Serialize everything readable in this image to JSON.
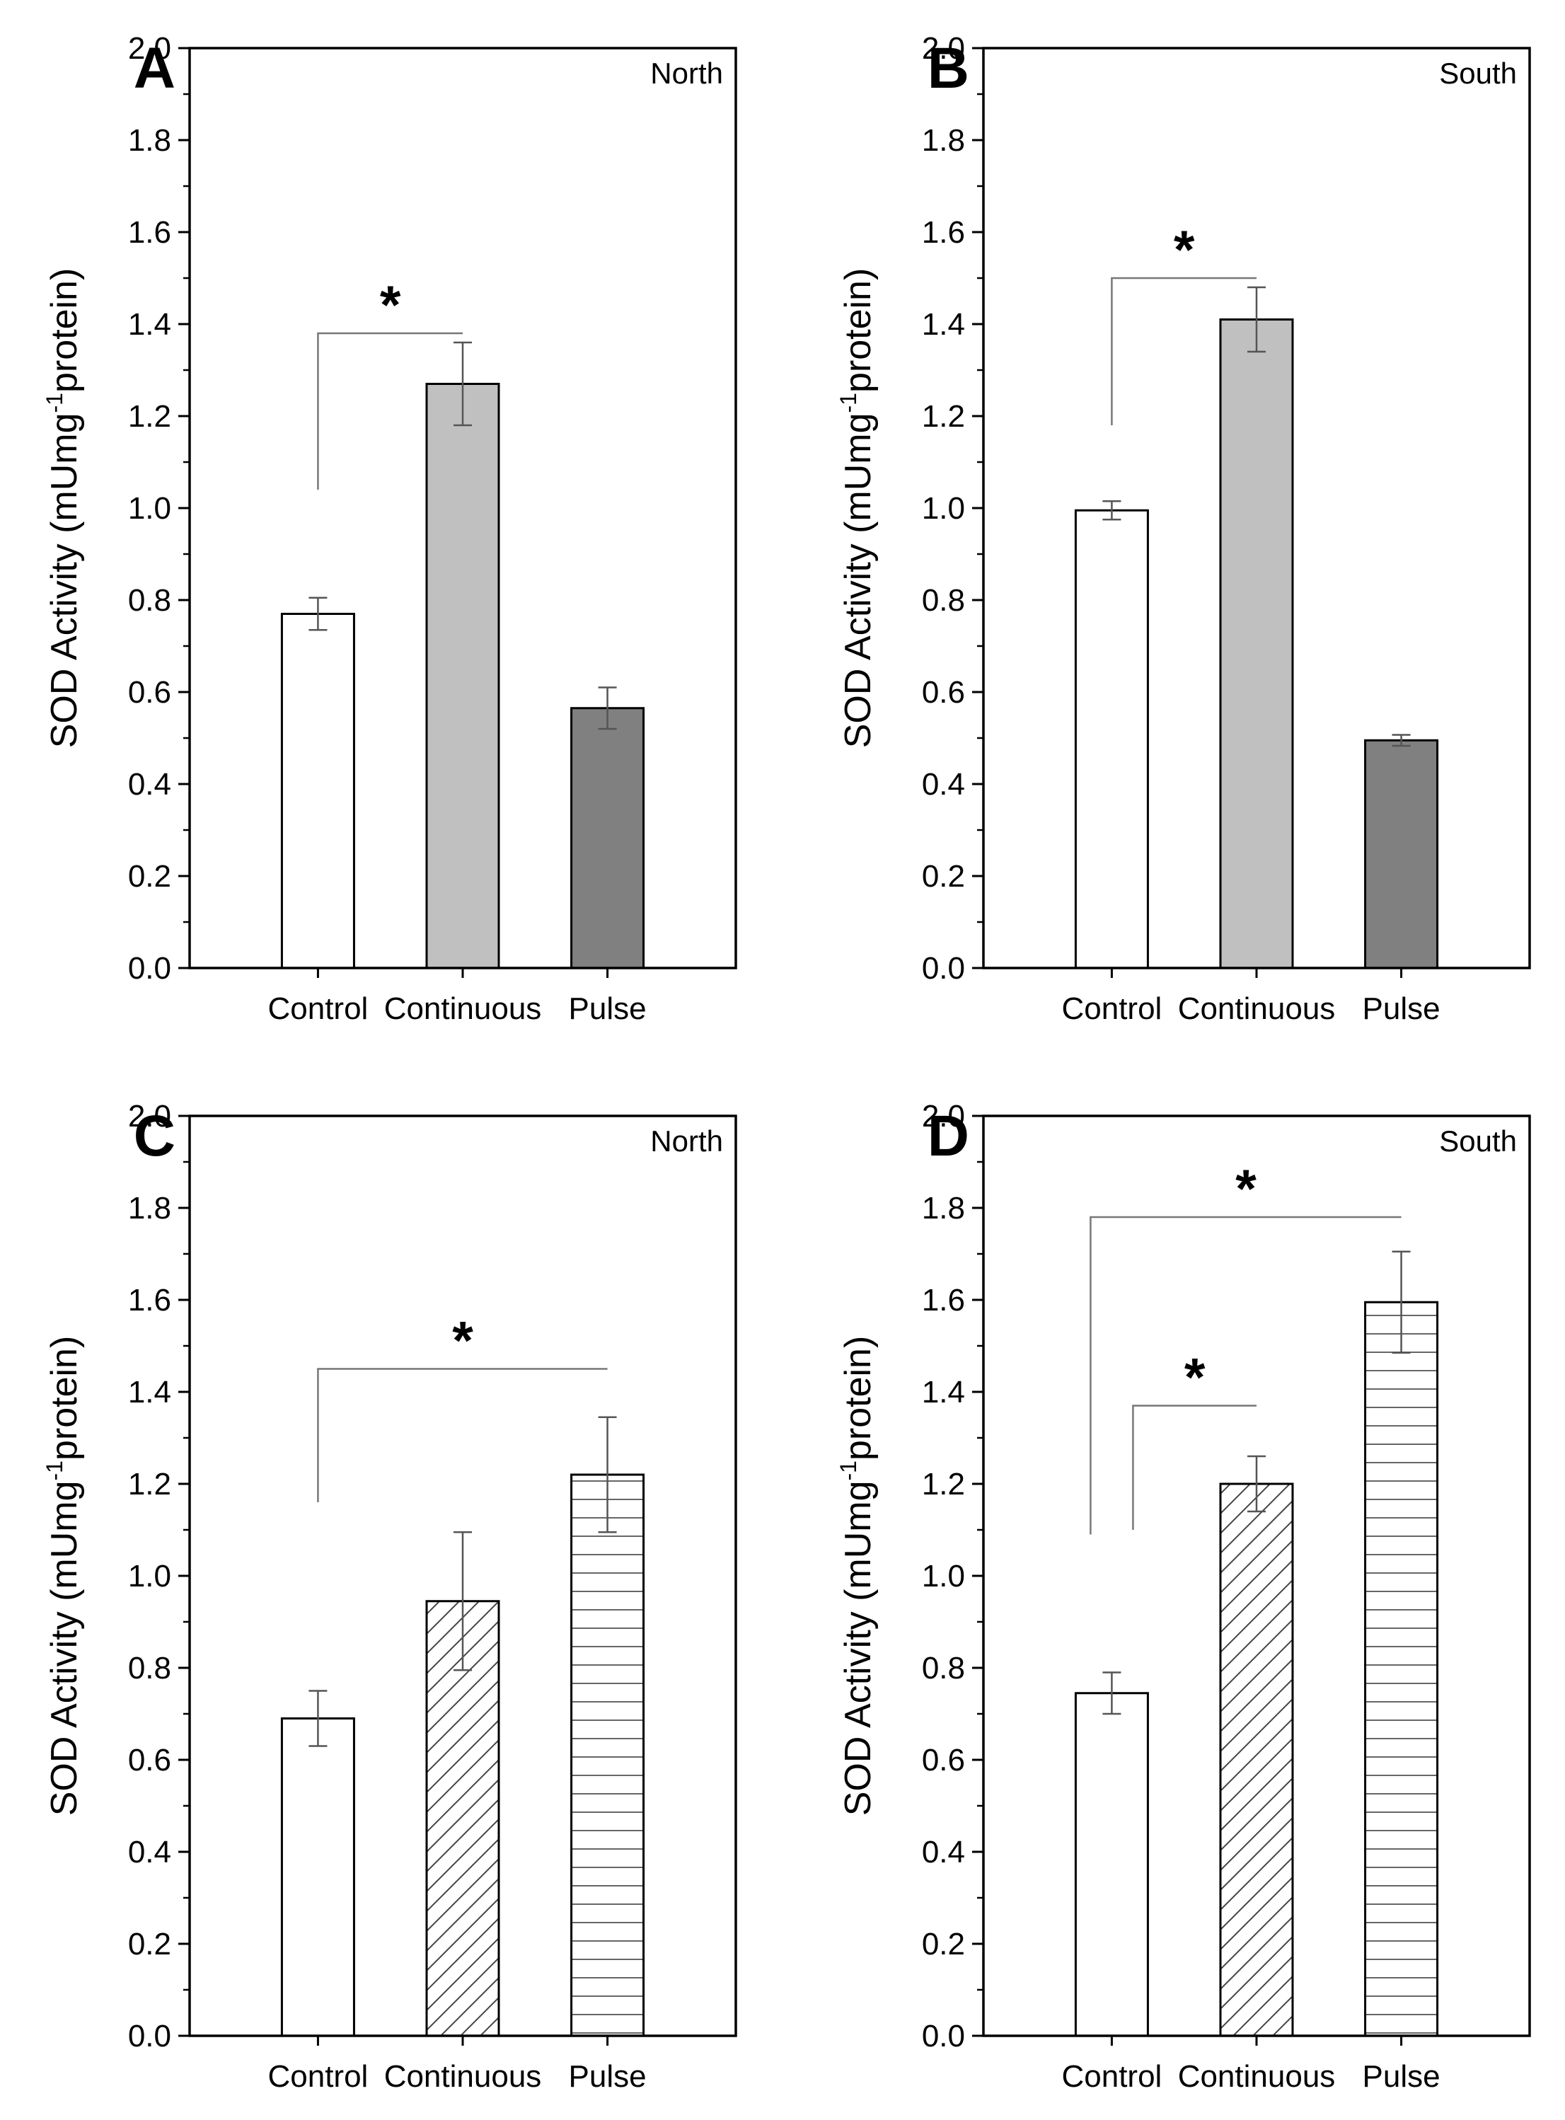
{
  "chart_data": [
    {
      "type": "bar",
      "panel": "A",
      "label": "North",
      "ylabel": {
        "main": "SOD Activity (mUmg",
        "sup": "-1",
        "end": "protein)"
      },
      "ylim": [
        0,
        2.0
      ],
      "yticks": [
        "0.0",
        "0.2",
        "0.4",
        "0.6",
        "0.8",
        "1.0",
        "1.2",
        "1.4",
        "1.6",
        "1.8",
        "2.0"
      ],
      "categories": [
        "Control",
        "Continuous",
        "Pulse"
      ],
      "values": [
        0.77,
        1.27,
        0.565
      ],
      "errors": [
        0.035,
        0.09,
        0.045
      ],
      "fills": [
        "#ffffff",
        "#c0c0c0",
        "#808080"
      ],
      "patterns": [
        "none",
        "none",
        "none"
      ],
      "significance": [
        {
          "from": 0,
          "to": 1,
          "level": 1.38,
          "start": 1.04,
          "end": 1.38,
          "symbol": "*"
        }
      ]
    },
    {
      "type": "bar",
      "panel": "B",
      "label": "South",
      "ylabel": {
        "main": "SOD Activity (mUmg",
        "sup": "-1",
        "end": "protein)"
      },
      "ylim": [
        0,
        2.0
      ],
      "yticks": [
        "0.0",
        "0.2",
        "0.4",
        "0.6",
        "0.8",
        "1.0",
        "1.2",
        "1.4",
        "1.6",
        "1.8",
        "2.0"
      ],
      "categories": [
        "Control",
        "Continuous",
        "Pulse"
      ],
      "values": [
        0.995,
        1.41,
        0.495
      ],
      "errors": [
        0.02,
        0.07,
        0.012
      ],
      "fills": [
        "#ffffff",
        "#c0c0c0",
        "#808080"
      ],
      "patterns": [
        "none",
        "none",
        "none"
      ],
      "significance": [
        {
          "from": 0,
          "to": 1,
          "level": 1.5,
          "start": 1.18,
          "end": 1.5,
          "symbol": "*"
        }
      ]
    },
    {
      "type": "bar",
      "panel": "C",
      "label": "North",
      "ylabel": {
        "main": "SOD Activity (mUmg",
        "sup": "-1",
        "end": "protein)"
      },
      "ylim": [
        0,
        2.0
      ],
      "yticks": [
        "0.0",
        "0.2",
        "0.4",
        "0.6",
        "0.8",
        "1.0",
        "1.2",
        "1.4",
        "1.6",
        "1.8",
        "2.0"
      ],
      "categories": [
        "Control",
        "Continuous",
        "Pulse"
      ],
      "values": [
        0.69,
        0.945,
        1.22
      ],
      "errors": [
        0.06,
        0.15,
        0.125
      ],
      "fills": [
        "#ffffff",
        "#ffffff",
        "#ffffff"
      ],
      "patterns": [
        "none",
        "diagonal",
        "horizontal"
      ],
      "significance": [
        {
          "from": 0,
          "to": 2,
          "level": 1.45,
          "start": 1.16,
          "end": 1.45,
          "symbol": "*"
        }
      ]
    },
    {
      "type": "bar",
      "panel": "D",
      "label": "South",
      "ylabel": {
        "main": "SOD Activity (mUmg",
        "sup": "-1",
        "end": "protein)"
      },
      "ylim": [
        0,
        2.0
      ],
      "yticks": [
        "0.0",
        "0.2",
        "0.4",
        "0.6",
        "0.8",
        "1.0",
        "1.2",
        "1.4",
        "1.6",
        "1.8",
        "2.0"
      ],
      "categories": [
        "Control",
        "Continuous",
        "Pulse"
      ],
      "values": [
        0.745,
        1.2,
        1.595
      ],
      "errors": [
        0.045,
        0.06,
        0.11
      ],
      "fills": [
        "#ffffff",
        "#ffffff",
        "#ffffff"
      ],
      "patterns": [
        "none",
        "diagonal",
        "horizontal"
      ],
      "significance": [
        {
          "from": 0,
          "to": 2,
          "level": 1.78,
          "start": 1.09,
          "end": 1.78,
          "symbol": "*",
          "offset": -30
        },
        {
          "from": 0,
          "to": 1,
          "level": 1.37,
          "start": 1.1,
          "end": 1.37,
          "symbol": "*",
          "offset": 30
        }
      ]
    }
  ]
}
